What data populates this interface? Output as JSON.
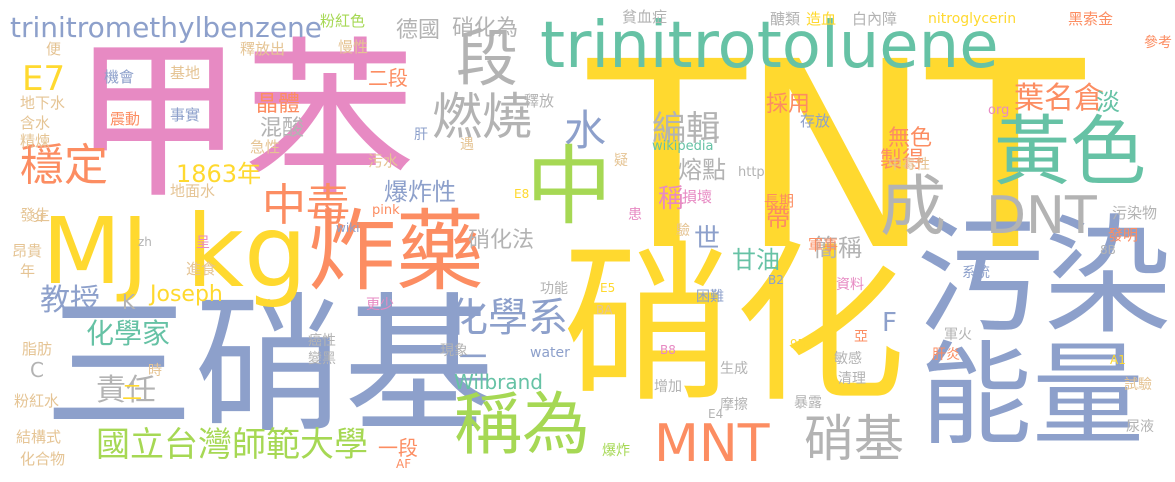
{
  "colors": {
    "pink": "#e78ac3",
    "yellow": "#ffd92f",
    "blue": "#8da0cb",
    "green": "#66c2a5",
    "orange": "#fc8d62",
    "gray": "#b3b3b3",
    "lime": "#a6d854",
    "tan": "#e5c494"
  },
  "words": [
    "TNT",
    "硝化",
    "甲苯",
    "三硝基",
    "污染",
    "能量",
    "trinitrotoluene",
    "MJ",
    "kg",
    "炸藥",
    "中",
    "黃色",
    "段",
    "成",
    "DNT",
    "稱為",
    "MNT",
    "硝基",
    "燃燒",
    "穩定",
    "中毒",
    "水",
    "化學系",
    "國立台灣師範大學",
    "三",
    "trinitromethylbenzene",
    "E7",
    "1863年",
    "教授",
    "Joseph",
    "Wilbrand",
    "化學家",
    "責任",
    "爆炸性",
    "硝化法",
    "編輯",
    "葉名倉",
    "製得",
    "無色",
    "熔點",
    "採用",
    "甘油",
    "簡稱",
    "帶",
    "世",
    "稱",
    "晶體",
    "混酸",
    "德國",
    "硝化為",
    "二段",
    "一段",
    "二",
    "淡",
    "F",
    "K",
    "C",
    "機會",
    "基地",
    "事實",
    "震動",
    "地下水",
    "含水",
    "精煉",
    "急性",
    "地面水",
    "污水",
    "發生",
    "昂貴",
    "年",
    "脂肪",
    "粉紅水",
    "結構式",
    "化合物",
    "便",
    "釋放出",
    "慢性",
    "粉紅色",
    "貧血症",
    "醣類",
    "造血",
    "白內障",
    "nitroglycerin",
    "黑索金",
    "參考",
    "org",
    "http",
    "wikipedia",
    "中毒性",
    "污染物",
    "發明",
    "軍事",
    "長期",
    "損壞",
    "疑",
    "遇",
    "肝",
    "存放",
    "釋放",
    "患",
    "E8",
    "pink",
    "wiki",
    "zh",
    "呈",
    "進食",
    "更少",
    "功能",
    "E5",
    "B2",
    "困難",
    "BA",
    "系統",
    "資料",
    "8B",
    "試驗",
    "A1",
    "肝炎",
    "軍火",
    "敏感",
    "亞",
    "9D",
    "清理",
    "生成",
    "摩擦",
    "增加",
    "B8",
    "water",
    "現象",
    "癌性",
    "變黑",
    "時",
    "暴露",
    "E4",
    "爆炸",
    "尿液",
    "AF",
    "9F",
    "驗"
  ]
}
